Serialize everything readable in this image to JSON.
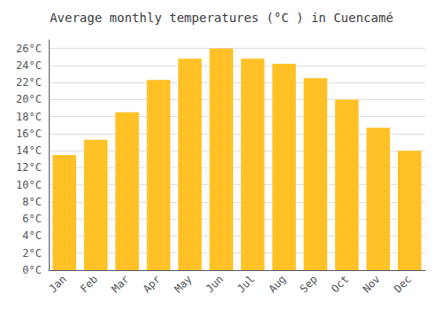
{
  "chart_data": {
    "type": "bar",
    "title": "Average monthly temperatures (°C ) in Cuencamé",
    "categories": [
      "Jan",
      "Feb",
      "Mar",
      "Apr",
      "May",
      "Jun",
      "Jul",
      "Aug",
      "Sep",
      "Oct",
      "Nov",
      "Dec"
    ],
    "values": [
      13.5,
      15.3,
      18.5,
      22.3,
      24.8,
      26.0,
      24.8,
      24.2,
      22.5,
      20.0,
      16.7,
      14.0
    ],
    "color": "#FFC125",
    "ylim": [
      0,
      27
    ],
    "yticks": [
      {
        "value": 0,
        "label": "0°C"
      },
      {
        "value": 2,
        "label": "2°C"
      },
      {
        "value": 4,
        "label": "4°C"
      },
      {
        "value": 6,
        "label": "6°C"
      },
      {
        "value": 8,
        "label": "8°C"
      },
      {
        "value": 10,
        "label": "10°C"
      },
      {
        "value": 12,
        "label": "12°C"
      },
      {
        "value": 14,
        "label": "14°C"
      },
      {
        "value": 16,
        "label": "16°C"
      },
      {
        "value": 18,
        "label": "18°C"
      },
      {
        "value": 20,
        "label": "20°C"
      },
      {
        "value": 22,
        "label": "22°C"
      },
      {
        "value": 24,
        "label": "24°C"
      },
      {
        "value": 26,
        "label": "26°C"
      }
    ],
    "grid": true
  }
}
